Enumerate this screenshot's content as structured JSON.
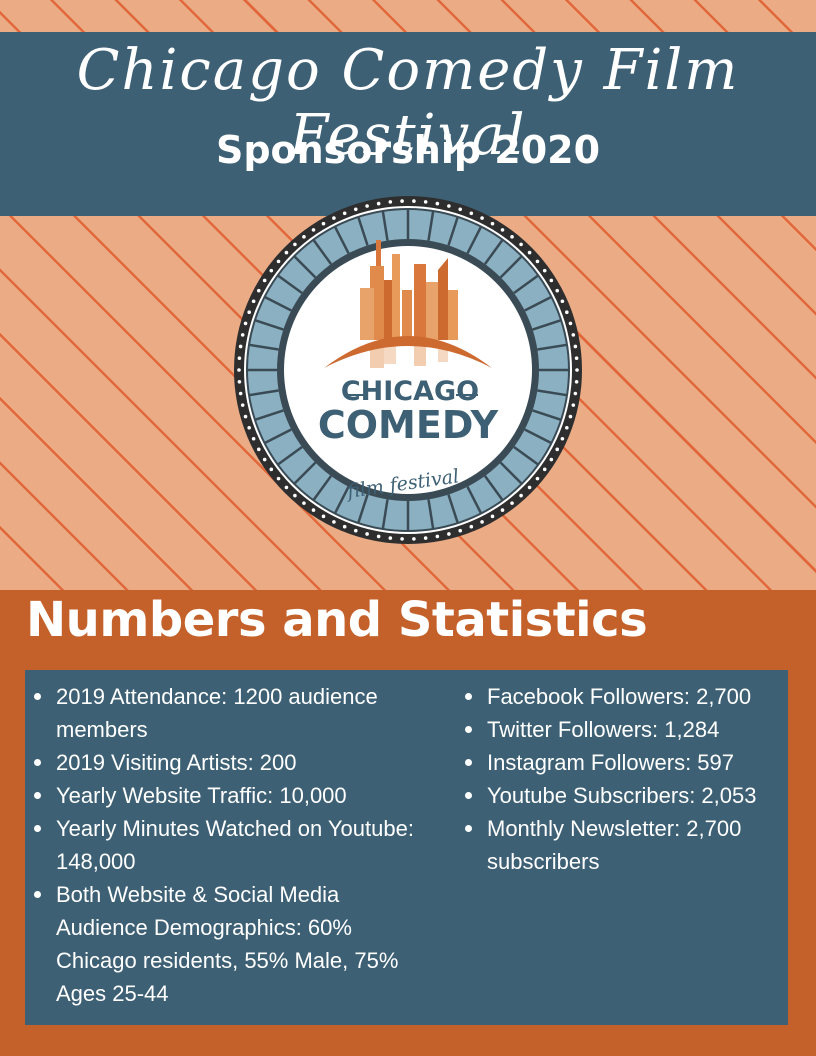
{
  "header": {
    "script_title": "Chicago Comedy Film Festival",
    "subtitle": "Sponsorship 2020"
  },
  "logo": {
    "line1": "CHICAGO",
    "line2": "COMEDY",
    "line3": "film festival"
  },
  "stats": {
    "title": "Numbers and Statistics",
    "left": [
      "2019 Attendance: 1200 audience members",
      "2019 Visiting Artists: 200",
      "Yearly Website Traffic: 10,000",
      "Yearly Minutes Watched on Youtube: 148,000",
      "Both Website & Social Media Audience Demographics: 60% Chicago residents, 55% Male, 75% Ages 25-44"
    ],
    "right": [
      "Facebook Followers: 2,700",
      "Twitter Followers: 1,284",
      "Instagram Followers: 597",
      "Youtube Subscribers: 2,053",
      "Monthly Newsletter: 2,700 subscribers"
    ]
  },
  "colors": {
    "slate_blue": "#3d6075",
    "peach": "#ebab85",
    "burnt_orange": "#c4612a",
    "stripe_orange": "#e0683a",
    "reel_blue": "#8bb0c2"
  }
}
